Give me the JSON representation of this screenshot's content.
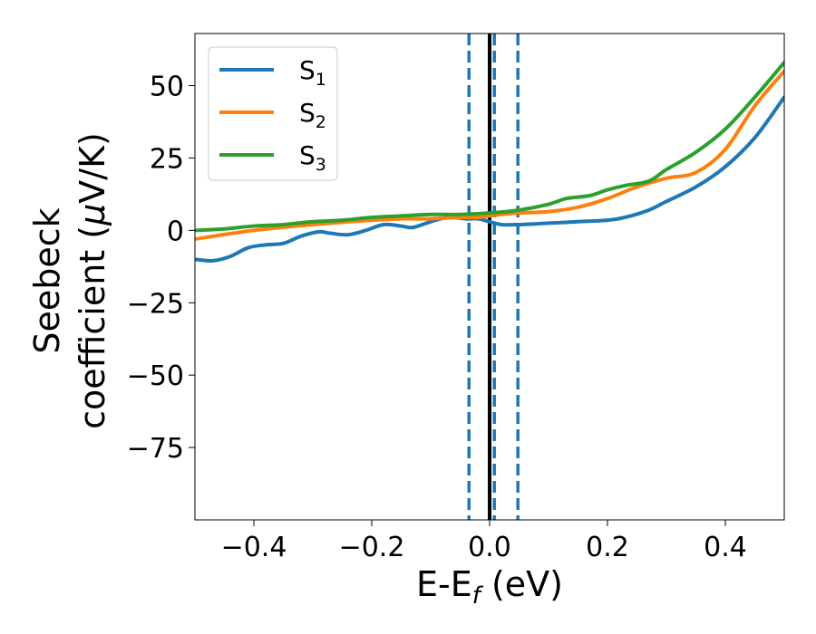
{
  "chart_data": {
    "type": "line",
    "title": "",
    "xlabel": "E-E",
    "xlabel_sub": "f",
    "xlabel_unit": "(eV)",
    "ylabel_line1": "Seebeck",
    "ylabel_line2_prefix": "coefficient  (",
    "ylabel_mu": "μ",
    "ylabel_line2_suffix": "V/K)",
    "xlim": [
      -0.5,
      0.5
    ],
    "ylim": [
      -100,
      68
    ],
    "x_ticks": [
      -0.4,
      -0.2,
      0.0,
      0.2,
      0.4
    ],
    "x_tick_labels": [
      "−0.4",
      "−0.2",
      "0.0",
      "0.2",
      "0.4"
    ],
    "y_ticks": [
      50,
      25,
      0,
      -25,
      -50,
      -75
    ],
    "y_tick_labels": [
      "50",
      "25",
      "0",
      "−25",
      "−50",
      "−75"
    ],
    "grid": false,
    "legend_position": "top-left",
    "vertical_lines": [
      {
        "x": 0.0,
        "style": "solid",
        "color": "#000000"
      },
      {
        "x": -0.035,
        "style": "dashed",
        "color": "#1f77b4"
      },
      {
        "x": 0.008,
        "style": "dashed",
        "color": "#1f77b4"
      },
      {
        "x": 0.048,
        "style": "dashed",
        "color": "#1f77b4"
      }
    ],
    "series": [
      {
        "name": "S",
        "sub": "1",
        "color": "#1f77b4",
        "x": [
          -0.5,
          -0.47,
          -0.44,
          -0.41,
          -0.38,
          -0.35,
          -0.32,
          -0.29,
          -0.27,
          -0.24,
          -0.21,
          -0.18,
          -0.15,
          -0.13,
          -0.1,
          -0.07,
          -0.04,
          -0.02,
          0.0,
          0.02,
          0.05,
          0.1,
          0.15,
          0.2,
          0.23,
          0.27,
          0.3,
          0.35,
          0.4,
          0.45,
          0.5
        ],
        "y": [
          -10,
          -10.5,
          -9,
          -6,
          -5,
          -4.5,
          -2,
          -0.5,
          -1,
          -1.5,
          0,
          2,
          1.5,
          1,
          3,
          4.5,
          4,
          4,
          3,
          2,
          2,
          2.5,
          3,
          3.5,
          4.5,
          7,
          10,
          15,
          22,
          32,
          46
        ]
      },
      {
        "name": "S",
        "sub": "2",
        "color": "#ff7f0e",
        "x": [
          -0.5,
          -0.4,
          -0.3,
          -0.2,
          -0.15,
          -0.1,
          -0.05,
          -0.02,
          0.0,
          0.02,
          0.05,
          0.1,
          0.15,
          0.2,
          0.25,
          0.3,
          0.35,
          0.4,
          0.45,
          0.5
        ],
        "y": [
          -3,
          0,
          2,
          3.5,
          4,
          4,
          4.5,
          4.5,
          5,
          5.5,
          6,
          6.5,
          8,
          11,
          15,
          18,
          20,
          28,
          43,
          55
        ]
      },
      {
        "name": "S",
        "sub": "3",
        "color": "#2ca02c",
        "x": [
          -0.5,
          -0.45,
          -0.4,
          -0.35,
          -0.3,
          -0.25,
          -0.2,
          -0.15,
          -0.1,
          -0.05,
          0.0,
          0.05,
          0.1,
          0.13,
          0.17,
          0.2,
          0.23,
          0.27,
          0.3,
          0.35,
          0.4,
          0.45,
          0.5
        ],
        "y": [
          0,
          0.5,
          1.5,
          2,
          3,
          3.5,
          4.5,
          5,
          5.5,
          5.5,
          6,
          7,
          9,
          11,
          12,
          14,
          15.5,
          17,
          21,
          27,
          35,
          46,
          58
        ]
      }
    ]
  }
}
